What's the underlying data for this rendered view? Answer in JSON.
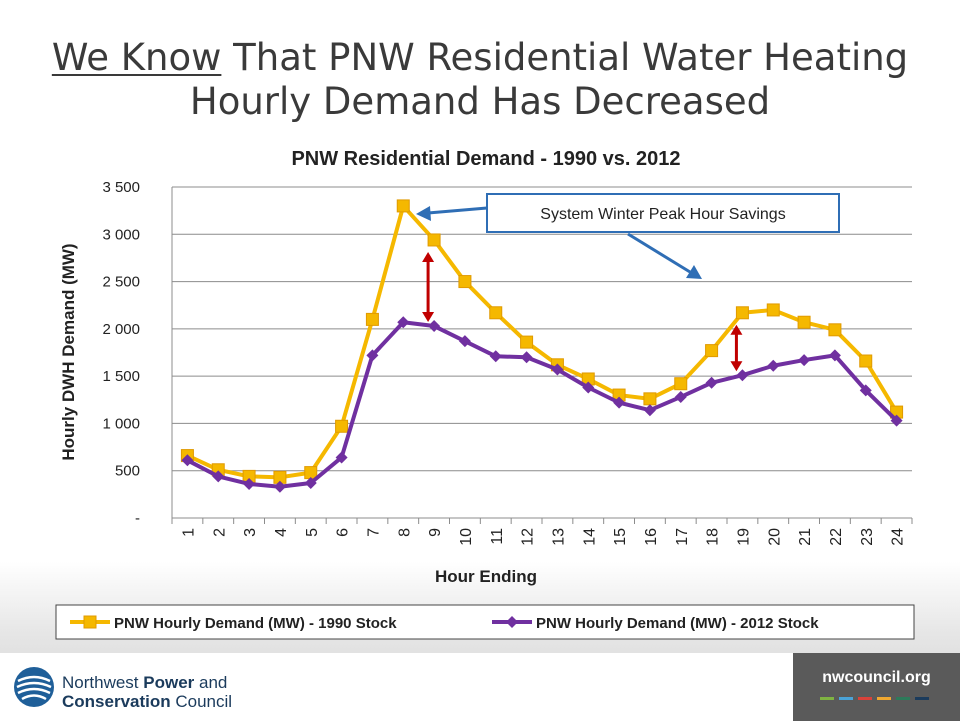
{
  "slide": {
    "title_underlined": "We Know",
    "title_rest_line1": " That PNW Residential Water Heating",
    "title_line2": "Hourly Demand Has Decreased"
  },
  "chart_data": {
    "type": "line",
    "title": "PNW Residential Demand  - 1990 vs. 2012",
    "xlabel": "Hour Ending",
    "ylabel": "Hourly DWH Demand (MW)",
    "categories": [
      "1",
      "2",
      "3",
      "4",
      "5",
      "6",
      "7",
      "8",
      "9",
      "10",
      "11",
      "12",
      "13",
      "14",
      "15",
      "16",
      "17",
      "18",
      "19",
      "20",
      "21",
      "22",
      "23",
      "24"
    ],
    "ylim": [
      0,
      3500
    ],
    "yticks": [
      0,
      500,
      1000,
      1500,
      2000,
      2500,
      3000,
      3500
    ],
    "ytick_labels": [
      "-",
      "500",
      "1 000",
      "1 500",
      "2 000",
      "2 500",
      "3 000",
      "3 500"
    ],
    "grid": true,
    "legend_position": "bottom",
    "series": [
      {
        "name": "PNW Hourly Demand (MW)  - 1990 Stock",
        "color": "#F5B800",
        "marker": "square",
        "values": [
          660,
          510,
          440,
          430,
          480,
          970,
          2100,
          3300,
          2940,
          2500,
          2170,
          1860,
          1620,
          1470,
          1300,
          1260,
          1420,
          1770,
          2170,
          2200,
          2070,
          1990,
          1660,
          1120
        ]
      },
      {
        "name": "PNW Hourly Demand (MW)  - 2012 Stock",
        "color": "#7030A0",
        "marker": "diamond",
        "values": [
          610,
          440,
          360,
          330,
          370,
          640,
          1720,
          2070,
          2030,
          1870,
          1710,
          1700,
          1570,
          1380,
          1220,
          1140,
          1280,
          1430,
          1510,
          1610,
          1670,
          1720,
          1350,
          1030
        ]
      }
    ],
    "annotation": "System Winter Peak Hour Savings"
  },
  "footer": {
    "org_line1_a": "Northwest ",
    "org_line1_b": "Power",
    "org_line1_c": " and",
    "org_line2_a": "Conservation",
    "org_line2_b": " Council",
    "website": "nwcouncil.org"
  }
}
